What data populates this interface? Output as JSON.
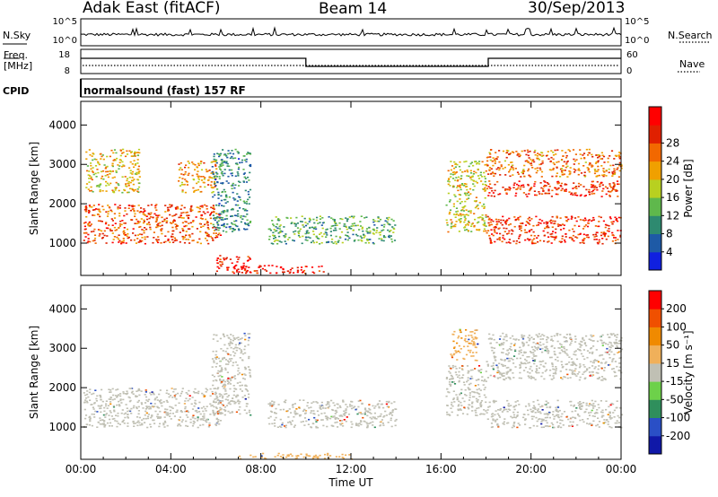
{
  "header": {
    "station": "Adak East (fitACF)",
    "beam": "Beam 14",
    "date": "30/Sep/2013"
  },
  "summary_panels": {
    "nsky_label": "N.Sky",
    "nsearch_label": "N.Search",
    "freq_label": "Freq.",
    "freq_unit": "[MHz]",
    "nave_label": "Nave",
    "cpid_label": "CPID",
    "cpid_value": "normalsound (fast) 157 RF",
    "noise_ticks": [
      "10^5",
      "10^0"
    ],
    "freq_ticks": [
      "18",
      "8"
    ],
    "nave_ticks": [
      "60",
      "0"
    ]
  },
  "chart_data": [
    {
      "type": "heatmap",
      "panel": "power",
      "xlabel": "",
      "ylabel": "Slant Range [km]",
      "x_ticks": [
        "00:00",
        "04:00",
        "08:00",
        "12:00",
        "16:00",
        "20:00",
        "00:00"
      ],
      "y_ticks": [
        1000,
        2000,
        3000,
        4000
      ],
      "xlim_hours": [
        0,
        24
      ],
      "ylim": [
        180,
        4600
      ],
      "colorbar": {
        "label": "Power [dB]",
        "ticks": [
          "4",
          "8",
          "12",
          "16",
          "20",
          "24",
          "28"
        ],
        "range": [
          0,
          30
        ],
        "colors": [
          "#1020e0",
          "#1e5aa6",
          "#2e8a70",
          "#5fb84c",
          "#b8d020",
          "#f0a000",
          "#f26800",
          "#e02000",
          "#ff0000"
        ]
      },
      "regions": [
        {
          "t": [
            0.1,
            6.2
          ],
          "r": [
            1000,
            2000
          ],
          "v": 23
        },
        {
          "t": [
            0.2,
            2.6
          ],
          "r": [
            2300,
            3400
          ],
          "v": 17
        },
        {
          "t": [
            4.3,
            6.0
          ],
          "r": [
            2300,
            3100
          ],
          "v": 19
        },
        {
          "t": [
            5.8,
            7.5
          ],
          "r": [
            1300,
            3400
          ],
          "v": 8
        },
        {
          "t": [
            6.0,
            7.5
          ],
          "r": [
            250,
            700
          ],
          "v": 27
        },
        {
          "t": [
            7.0,
            11.0
          ],
          "r": [
            250,
            450
          ],
          "v": 27
        },
        {
          "t": [
            8.3,
            14.0
          ],
          "r": [
            1000,
            1700
          ],
          "v": 11
        },
        {
          "t": [
            16.2,
            18.0
          ],
          "r": [
            1300,
            3100
          ],
          "v": 16
        },
        {
          "t": [
            18.0,
            24.0
          ],
          "r": [
            1000,
            1700
          ],
          "v": 25
        },
        {
          "t": [
            18.0,
            24.0
          ],
          "r": [
            2200,
            2600
          ],
          "v": 25
        },
        {
          "t": [
            18.0,
            24.0
          ],
          "r": [
            2700,
            3400
          ],
          "v": 21
        }
      ]
    },
    {
      "type": "heatmap",
      "panel": "velocity",
      "xlabel": "Time UT",
      "ylabel": "Slant Range [km]",
      "x_ticks": [
        "00:00",
        "04:00",
        "08:00",
        "12:00",
        "16:00",
        "20:00",
        "00:00"
      ],
      "y_ticks": [
        1000,
        2000,
        3000,
        4000
      ],
      "xlim_hours": [
        0,
        24
      ],
      "ylim": [
        180,
        4600
      ],
      "colorbar": {
        "label": "Velocity [m s⁻¹]",
        "ticks": [
          "200",
          "100",
          "50",
          "15",
          "-15",
          "-50",
          "-100",
          "-200"
        ],
        "range": [
          -250,
          250
        ],
        "colors": [
          "#1018a8",
          "#2a4fc6",
          "#2f8f5c",
          "#6dd14a",
          "#c0c0b4",
          "#f0b05a",
          "#f08a00",
          "#f05000",
          "#ff0000"
        ]
      },
      "regions": [
        {
          "t": [
            0.1,
            6.2
          ],
          "r": [
            1000,
            2000
          ],
          "v": 0
        },
        {
          "t": [
            5.8,
            7.5
          ],
          "r": [
            1300,
            3400
          ],
          "v": 0
        },
        {
          "t": [
            8.3,
            14.0
          ],
          "r": [
            1000,
            1700
          ],
          "v": 0
        },
        {
          "t": [
            16.4,
            17.6
          ],
          "r": [
            2700,
            3500
          ],
          "v": 75
        },
        {
          "t": [
            16.2,
            18.0
          ],
          "r": [
            1300,
            2600
          ],
          "v": 0
        },
        {
          "t": [
            18.0,
            24.0
          ],
          "r": [
            1000,
            1700
          ],
          "v": 0
        },
        {
          "t": [
            18.0,
            24.0
          ],
          "r": [
            2200,
            3400
          ],
          "v": 0
        },
        {
          "t": [
            7.0,
            12.0
          ],
          "r": [
            200,
            350
          ],
          "v": 60
        }
      ]
    }
  ]
}
